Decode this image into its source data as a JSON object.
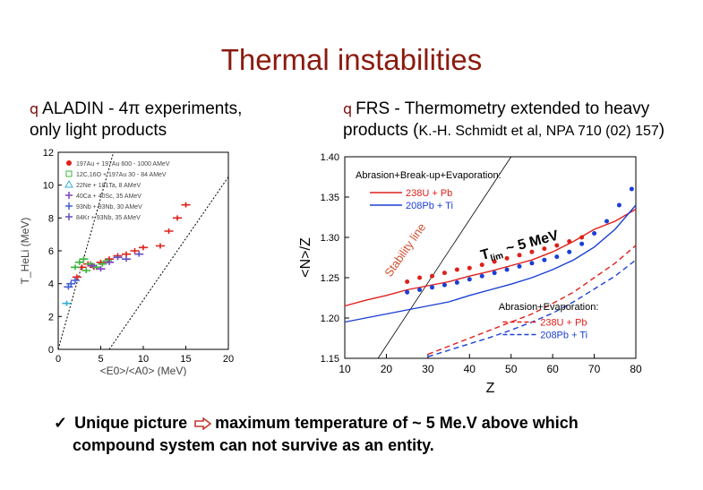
{
  "slide": {
    "title": "Thermal instabilities",
    "left_block": {
      "bullet": "q",
      "line1": "ALADIN - 4π experiments,",
      "line2": "only light products"
    },
    "right_block": {
      "bullet": "q",
      "line1": "FRS - Thermometry extended to heavy",
      "line2_main": "products (",
      "line2_ref": "K.-H. Schmidt et al, NPA 710 (02) 157",
      "line2_close": ")"
    },
    "conclusion": {
      "check": "✓",
      "line1_a": "Unique picture",
      "line1_b": "maximum temperature of ~ 5 Me.V  above which",
      "line2": "compound system can not survive as an entity."
    }
  },
  "colors": {
    "title": "#8b1a0e",
    "bullet": "#7a0a0a",
    "red": "#e0201a",
    "blue": "#1a3fd6"
  },
  "chart_data": [
    {
      "type": "scatter",
      "xlabel": "<E0>/<A0> (MeV)",
      "ylabel": "T_HeLi (MeV)",
      "xlim": [
        0,
        20
      ],
      "ylim": [
        0,
        12
      ],
      "xticks": [
        "0",
        "5",
        "10",
        "15",
        "20"
      ],
      "yticks": [
        "0",
        "2",
        "4",
        "6",
        "8",
        "10",
        "12"
      ],
      "legend": [
        {
          "label": "197Au + 197Au 600 - 1000 AMeV",
          "color": "#e0201a",
          "marker": "dot"
        },
        {
          "label": "12C,16O + 197Au 30 - 84 AMeV",
          "color": "#3cb43c",
          "marker": "square"
        },
        {
          "label": "22Ne + 181Ta, 8 AMeV",
          "color": "#30b0d0",
          "marker": "triangle"
        },
        {
          "label": "40Ca + 40Sc, 35 AMeV",
          "color": "#8040c0",
          "marker": "plus"
        },
        {
          "label": "93Nb + 93Nb, 30 AMeV",
          "color": "#4060d0",
          "marker": "plus"
        },
        {
          "label": "84Kr + 93Nb, 35 AMeV",
          "color": "#6050c0",
          "marker": "plus"
        }
      ],
      "series": [
        {
          "color": "#e0201a",
          "points": [
            [
              2.2,
              4.4
            ],
            [
              2.8,
              5.0
            ],
            [
              3.5,
              5.2
            ],
            [
              4.2,
              5.0
            ],
            [
              5.0,
              5.3
            ],
            [
              6.0,
              5.5
            ],
            [
              7.0,
              5.7
            ],
            [
              8.0,
              5.8
            ],
            [
              9.0,
              6.0
            ],
            [
              10.0,
              6.2
            ],
            [
              12.0,
              6.3
            ],
            [
              13.0,
              7.2
            ],
            [
              14.0,
              8.0
            ],
            [
              15.0,
              8.8
            ]
          ]
        },
        {
          "color": "#3cb43c",
          "points": [
            [
              2.0,
              5.0
            ],
            [
              2.5,
              5.3
            ],
            [
              3.0,
              5.5
            ],
            [
              3.3,
              4.8
            ],
            [
              3.8,
              5.2
            ],
            [
              4.5,
              5.0
            ],
            [
              5.2,
              5.2
            ],
            [
              5.8,
              5.4
            ]
          ]
        },
        {
          "color": "#30b0d0",
          "points": [
            [
              1.0,
              2.8
            ]
          ]
        },
        {
          "color": "#8040c0",
          "points": [
            [
              4.0,
              5.1
            ],
            [
              5.0,
              4.9
            ],
            [
              6.0,
              5.3
            ]
          ]
        },
        {
          "color": "#4060d0",
          "points": [
            [
              1.2,
              3.8
            ],
            [
              1.5,
              4.0
            ],
            [
              2.0,
              4.2
            ]
          ]
        },
        {
          "color": "#6050c0",
          "points": [
            [
              7.0,
              5.6
            ],
            [
              8.0,
              5.5
            ],
            [
              9.5,
              5.8
            ]
          ]
        }
      ],
      "guides": [
        {
          "from": [
            0,
            0
          ],
          "to": [
            6.5,
            12
          ]
        },
        {
          "from": [
            6,
            0
          ],
          "to": [
            20,
            10.5
          ]
        }
      ]
    },
    {
      "type": "line",
      "xlabel": "Z",
      "ylabel": "<N>/Z",
      "xlim": [
        10,
        80
      ],
      "ylim": [
        1.15,
        1.4
      ],
      "xticks": [
        "10",
        "20",
        "30",
        "40",
        "50",
        "60",
        "70",
        "80"
      ],
      "yticks": [
        "1.15",
        "1.20",
        "1.25",
        "1.30",
        "1.35",
        "1.40"
      ],
      "annotations": {
        "panel_top": "Abrasion+Break-up+Evaporation:",
        "panel_bottom": "Abrasion+Evaporation:",
        "stability": "Stability line",
        "tlim": "T_lim ~ 5 MeV",
        "tlim_main": "T",
        "tlim_sub": "lim",
        "tlim_rest": "~ 5 MeV"
      },
      "legend_top": [
        {
          "label": "238U + Pb",
          "color": "#e0201a",
          "style": "solid"
        },
        {
          "label": "208Pb + Ti",
          "color": "#1a3fd6",
          "style": "solid"
        }
      ],
      "legend_bottom": [
        {
          "label": "238U + Pb",
          "color": "#e0201a",
          "style": "dashed"
        },
        {
          "label": "208Pb + Ti",
          "color": "#1a3fd6",
          "style": "dashed"
        }
      ],
      "series": [
        {
          "name": "238U + Pb",
          "color": "#e0201a",
          "style": "solid",
          "x": [
            10,
            15,
            20,
            25,
            30,
            35,
            40,
            45,
            50,
            55,
            60,
            65,
            70,
            75,
            80
          ],
          "y": [
            1.215,
            1.222,
            1.228,
            1.235,
            1.24,
            1.245,
            1.252,
            1.258,
            1.265,
            1.272,
            1.282,
            1.295,
            1.31,
            1.32,
            1.335
          ]
        },
        {
          "name": "208Pb + Ti",
          "color": "#1a3fd6",
          "style": "solid",
          "x": [
            10,
            15,
            20,
            25,
            30,
            35,
            40,
            45,
            50,
            55,
            60,
            65,
            70,
            75,
            80
          ],
          "y": [
            1.195,
            1.2,
            1.205,
            1.21,
            1.215,
            1.22,
            1.228,
            1.235,
            1.242,
            1.25,
            1.26,
            1.272,
            1.288,
            1.31,
            1.34
          ]
        },
        {
          "name": "238U + Pb data",
          "color": "#e0201a",
          "style": "markers",
          "x": [
            25,
            28,
            31,
            34,
            37,
            40,
            43,
            46,
            49,
            52,
            55,
            58,
            61,
            64,
            67
          ],
          "y": [
            1.245,
            1.25,
            1.252,
            1.256,
            1.26,
            1.262,
            1.266,
            1.27,
            1.274,
            1.278,
            1.282,
            1.286,
            1.29,
            1.295,
            1.3
          ]
        },
        {
          "name": "208Pb + Ti data",
          "color": "#1a3fd6",
          "style": "markers",
          "x": [
            25,
            28,
            31,
            34,
            37,
            40,
            43,
            46,
            49,
            52,
            55,
            58,
            61,
            64,
            67,
            70,
            73,
            76,
            79
          ],
          "y": [
            1.232,
            1.235,
            1.238,
            1.241,
            1.244,
            1.248,
            1.252,
            1.256,
            1.26,
            1.264,
            1.268,
            1.272,
            1.276,
            1.282,
            1.292,
            1.305,
            1.32,
            1.34,
            1.36
          ]
        },
        {
          "name": "238U + Pb A+E",
          "color": "#e0201a",
          "style": "dashed",
          "x": [
            30,
            35,
            40,
            45,
            50,
            55,
            60,
            65,
            70,
            75,
            80
          ],
          "y": [
            1.155,
            1.165,
            1.175,
            1.185,
            1.195,
            1.205,
            1.218,
            1.232,
            1.25,
            1.268,
            1.29
          ]
        },
        {
          "name": "208Pb + Ti A+E",
          "color": "#1a3fd6",
          "style": "dashed",
          "x": [
            30,
            35,
            40,
            45,
            50,
            55,
            60,
            65,
            70,
            75,
            80
          ],
          "y": [
            1.152,
            1.16,
            1.168,
            1.176,
            1.185,
            1.195,
            1.206,
            1.22,
            1.236,
            1.252,
            1.272
          ]
        }
      ],
      "stability_line": {
        "from": [
          18,
          1.15
        ],
        "to": [
          50,
          1.4
        ]
      }
    }
  ]
}
